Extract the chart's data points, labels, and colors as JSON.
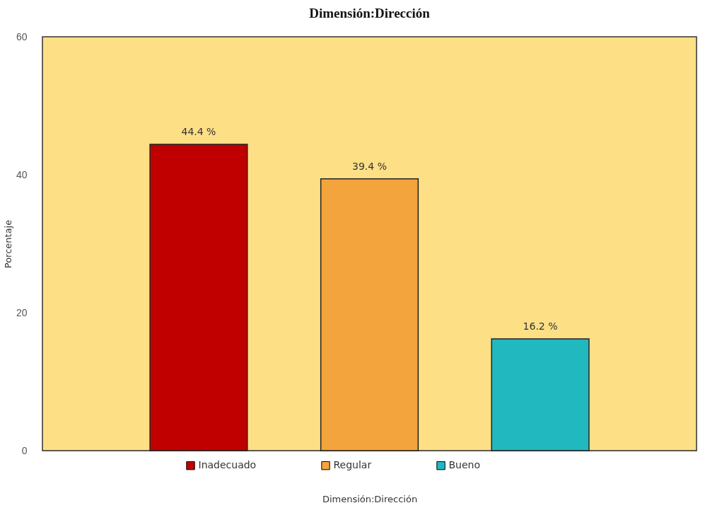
{
  "chart_data": {
    "type": "bar",
    "title": "Dimensión:Dirección",
    "xlabel": "Dimensión:Dirección",
    "ylabel": "Porcentaje",
    "categories": [
      null
    ],
    "series": [
      {
        "name": "Inadecuado",
        "color": "#c00000",
        "values": [
          44.4
        ],
        "value_labels": [
          "44.4 %"
        ]
      },
      {
        "name": "Regular",
        "color": "#f4a43c",
        "values": [
          39.4
        ],
        "value_labels": [
          "39.4 %"
        ]
      },
      {
        "name": "Bueno",
        "color": "#22b8c0",
        "values": [
          16.2
        ],
        "value_labels": [
          "16.2 %"
        ]
      }
    ],
    "ylim": [
      0,
      60
    ],
    "yticks": [
      0,
      20,
      40,
      60
    ],
    "grid": false,
    "legend": "bottom"
  }
}
